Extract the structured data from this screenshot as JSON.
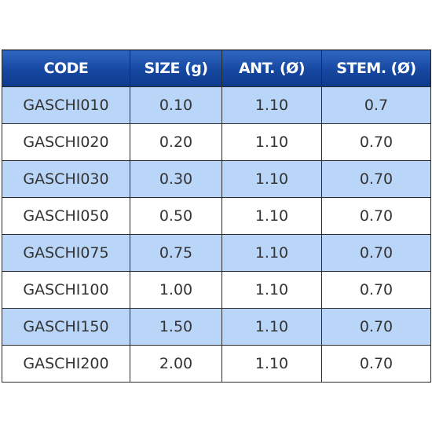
{
  "table": {
    "header": [
      "CODE",
      "SIZE (g)",
      "ANT. (Ø)",
      "STEM. (Ø)"
    ],
    "rows": [
      [
        "GASCHI010",
        "0.10",
        "1.10",
        "0.7"
      ],
      [
        "GASCHI020",
        "0.20",
        "1.10",
        "0.70"
      ],
      [
        "GASCHI030",
        "0.30",
        "1.10",
        "0.70"
      ],
      [
        "GASCHI050",
        "0.50",
        "1.10",
        "0.70"
      ],
      [
        "GASCHI075",
        "0.75",
        "1.10",
        "0.70"
      ],
      [
        "GASCHI100",
        "1.00",
        "1.10",
        "0.70"
      ],
      [
        "GASCHI150",
        "1.50",
        "1.10",
        "0.70"
      ],
      [
        "GASCHI200",
        "2.00",
        "1.10",
        "0.70"
      ]
    ]
  }
}
